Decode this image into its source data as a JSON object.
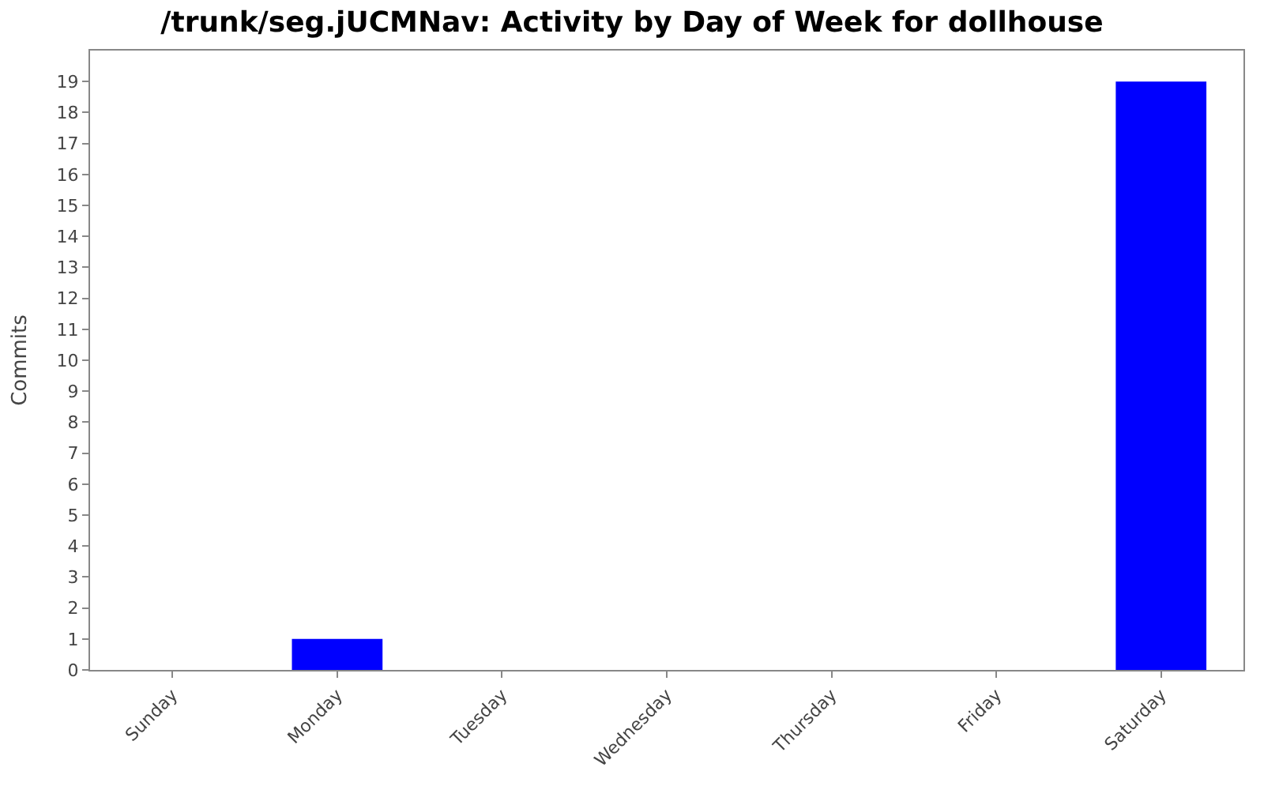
{
  "chart_data": {
    "type": "bar",
    "title": "/trunk/seg.jUCMNav: Activity by Day of Week for dollhouse",
    "ylabel": "Commits",
    "categories": [
      "Sunday",
      "Monday",
      "Tuesday",
      "Wednesday",
      "Thursday",
      "Friday",
      "Saturday"
    ],
    "values": [
      0,
      1,
      0,
      0,
      0,
      0,
      19
    ],
    "color": "#0000ff",
    "ylim": [
      0,
      20
    ],
    "yticks": [
      0,
      1,
      2,
      3,
      4,
      5,
      6,
      7,
      8,
      9,
      10,
      11,
      12,
      13,
      14,
      15,
      16,
      17,
      18,
      19
    ]
  }
}
